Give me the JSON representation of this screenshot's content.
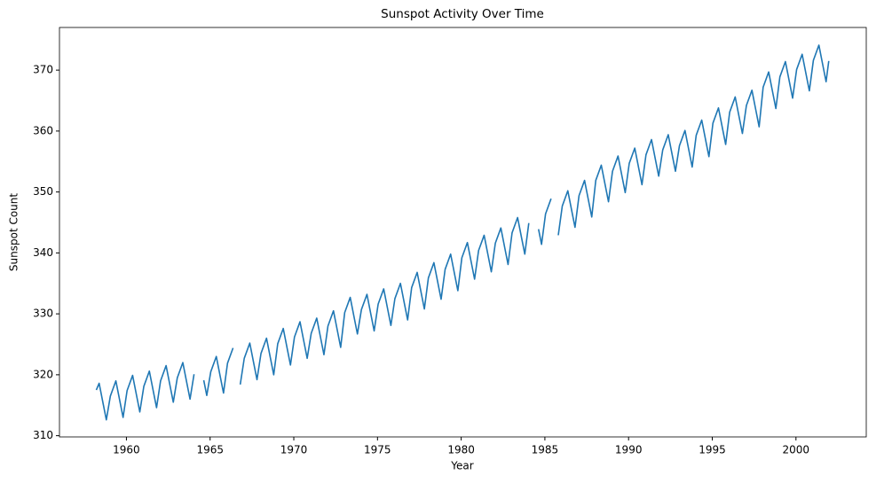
{
  "chart_data": {
    "type": "line",
    "title": "Sunspot Activity Over Time",
    "x_label": "Year",
    "y_label": "Sunspot Count",
    "color": "#1f77b4",
    "xlim": [
      1956.0,
      2004.2
    ],
    "xticks": [
      1960,
      1965,
      1970,
      1975,
      1980,
      1985,
      1990,
      1995,
      2000
    ],
    "ylim": [
      309.8,
      377.0
    ],
    "yticks": [
      310,
      320,
      330,
      340,
      350,
      360,
      370
    ],
    "x": [
      1958.2,
      1958.37,
      1958.62,
      1958.8,
      1959.04,
      1959.37,
      1959.62,
      1959.8,
      1960.04,
      1960.37,
      1960.62,
      1960.8,
      1961.04,
      1961.37,
      1961.62,
      1961.8,
      1962.04,
      1962.37,
      1962.62,
      1962.8,
      1963.04,
      1963.37,
      1963.62,
      1963.8,
      1964.04,
      1964.37,
      1964.62,
      1964.8,
      1965.04,
      1965.37,
      1965.62,
      1965.8,
      1966.04,
      1966.37,
      1966.62,
      1966.8,
      1967.04,
      1967.37,
      1967.62,
      1967.8,
      1968.04,
      1968.37,
      1968.62,
      1968.8,
      1969.04,
      1969.37,
      1969.62,
      1969.8,
      1970.04,
      1970.37,
      1970.62,
      1970.8,
      1971.04,
      1971.37,
      1971.62,
      1971.8,
      1972.04,
      1972.37,
      1972.62,
      1972.8,
      1973.04,
      1973.37,
      1973.62,
      1973.8,
      1974.04,
      1974.37,
      1974.62,
      1974.8,
      1975.04,
      1975.37,
      1975.62,
      1975.8,
      1976.04,
      1976.37,
      1976.62,
      1976.8,
      1977.04,
      1977.37,
      1977.62,
      1977.8,
      1978.04,
      1978.37,
      1978.62,
      1978.8,
      1979.04,
      1979.37,
      1979.62,
      1979.8,
      1980.04,
      1980.37,
      1980.62,
      1980.8,
      1981.04,
      1981.37,
      1981.62,
      1981.8,
      1982.04,
      1982.37,
      1982.62,
      1982.8,
      1983.04,
      1983.37,
      1983.62,
      1983.8,
      1984.04,
      1984.37,
      1984.62,
      1984.8,
      1985.04,
      1985.37,
      1985.62,
      1985.8,
      1986.04,
      1986.37,
      1986.62,
      1986.8,
      1987.04,
      1987.37,
      1987.62,
      1987.8,
      1988.04,
      1988.37,
      1988.62,
      1988.8,
      1989.04,
      1989.37,
      1989.62,
      1989.8,
      1990.04,
      1990.37,
      1990.62,
      1990.8,
      1991.04,
      1991.37,
      1991.62,
      1991.8,
      1992.04,
      1992.37,
      1992.62,
      1992.8,
      1993.04,
      1993.37,
      1993.62,
      1993.8,
      1994.04,
      1994.37,
      1994.62,
      1994.8,
      1995.04,
      1995.37,
      1995.62,
      1995.8,
      1996.04,
      1996.37,
      1996.62,
      1996.8,
      1997.04,
      1997.37,
      1997.62,
      1997.8,
      1998.04,
      1998.37,
      1998.62,
      1998.8,
      1999.04,
      1999.37,
      1999.62,
      1999.8,
      2000.04,
      2000.37,
      2000.62,
      2000.8,
      2001.04,
      2001.37,
      2001.62,
      2001.8,
      2001.96
    ],
    "values": [
      317.5,
      318.6,
      315.1,
      312.6,
      316.5,
      319.0,
      315.5,
      313.0,
      317.4,
      319.9,
      316.4,
      313.9,
      318.1,
      320.6,
      317.1,
      314.6,
      319.0,
      321.5,
      318.0,
      315.5,
      319.5,
      322.0,
      318.5,
      316.0,
      320.1,
      null,
      319.1,
      316.6,
      320.5,
      323.0,
      319.5,
      317.0,
      321.9,
      324.4,
      null,
      318.4,
      322.7,
      325.2,
      321.7,
      319.2,
      323.5,
      326.0,
      322.5,
      320.0,
      325.1,
      327.6,
      324.1,
      321.6,
      326.2,
      328.7,
      325.2,
      322.7,
      326.8,
      329.3,
      325.8,
      323.3,
      328.0,
      330.5,
      327.0,
      324.5,
      330.2,
      332.7,
      329.2,
      326.7,
      330.7,
      333.2,
      329.7,
      327.2,
      331.6,
      334.1,
      330.6,
      328.1,
      332.5,
      335.0,
      331.5,
      329.0,
      334.3,
      336.8,
      333.3,
      330.8,
      335.9,
      338.4,
      334.9,
      332.4,
      337.3,
      339.8,
      336.3,
      333.8,
      339.2,
      341.7,
      338.2,
      335.7,
      340.4,
      342.9,
      339.4,
      336.9,
      341.6,
      344.1,
      340.6,
      338.1,
      343.3,
      345.8,
      342.3,
      339.8,
      344.9,
      null,
      343.9,
      341.4,
      346.4,
      348.9,
      null,
      342.9,
      347.7,
      350.2,
      346.7,
      344.2,
      349.4,
      351.9,
      348.4,
      345.9,
      351.9,
      354.4,
      350.9,
      348.4,
      353.4,
      355.9,
      352.4,
      349.9,
      354.7,
      357.2,
      353.7,
      351.2,
      356.1,
      358.6,
      355.1,
      352.6,
      356.9,
      359.4,
      355.9,
      353.4,
      357.6,
      360.1,
      356.6,
      354.1,
      359.3,
      361.8,
      358.3,
      355.8,
      361.3,
      363.8,
      360.3,
      357.8,
      363.1,
      365.6,
      362.1,
      359.6,
      364.2,
      366.7,
      363.2,
      360.7,
      367.2,
      369.7,
      366.2,
      363.7,
      368.9,
      371.4,
      367.9,
      365.4,
      370.1,
      372.6,
      369.1,
      366.6,
      371.6,
      374.1,
      370.6,
      368.1,
      371.5
    ]
  }
}
